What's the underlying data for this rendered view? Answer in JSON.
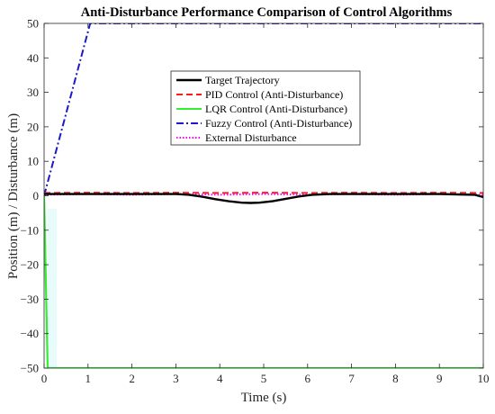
{
  "chart_data": {
    "type": "line",
    "title": "Anti-Disturbance Performance Comparison of Control Algorithms",
    "xlabel": "Time (s)",
    "ylabel": "Position (m) / Disturbance (m)",
    "xlim": [
      0,
      10
    ],
    "ylim": [
      -50,
      50
    ],
    "xticks": [
      0,
      1,
      2,
      3,
      4,
      5,
      6,
      7,
      8,
      9,
      10
    ],
    "yticks": [
      -50,
      -40,
      -30,
      -20,
      -10,
      0,
      10,
      20,
      30,
      40,
      50
    ],
    "grid": false,
    "legend_position": "top-center",
    "series": [
      {
        "name": "Target Trajectory",
        "color": "#000000",
        "style": "solid",
        "x": [
          0,
          1,
          2,
          3,
          3.3,
          3.6,
          3.9,
          4.2,
          4.5,
          4.7,
          4.9,
          5.2,
          5.5,
          5.8,
          6.1,
          6.5,
          7,
          8,
          9,
          9.8,
          10
        ],
        "y": [
          0.5,
          0.5,
          0.5,
          0.5,
          0.3,
          -0.3,
          -1.0,
          -1.6,
          -2.0,
          -2.1,
          -2.0,
          -1.6,
          -0.9,
          -0.2,
          0.3,
          0.5,
          0.5,
          0.5,
          0.5,
          0.3,
          -0.4
        ]
      },
      {
        "name": "PID Control (Anti-Disturbance)",
        "color": "#ff1a1a",
        "style": "dashed",
        "x": [
          0,
          1,
          2,
          3,
          4,
          5,
          6,
          7,
          8,
          9,
          10
        ],
        "y": [
          0.8,
          0.9,
          0.8,
          0.9,
          0.8,
          0.9,
          0.8,
          0.9,
          0.8,
          0.9,
          0.8
        ]
      },
      {
        "name": "LQR Control (Anti-Disturbance)",
        "color": "#33ee33",
        "style": "solid",
        "x": [
          0,
          0.08,
          0.1,
          1,
          2,
          3,
          4,
          5,
          6,
          7,
          8,
          9,
          10
        ],
        "y": [
          0,
          -49.5,
          -50,
          -50,
          -50,
          -50,
          -50,
          -50,
          -50,
          -50,
          -50,
          -50,
          -50
        ]
      },
      {
        "name": "Fuzzy Control (Anti-Disturbance)",
        "color": "#1a1ac8",
        "style": "dashdot",
        "x": [
          0,
          1.05,
          2,
          3,
          4,
          5,
          6,
          7,
          8,
          9,
          10
        ],
        "y": [
          0,
          50,
          50,
          50,
          50,
          50,
          50,
          50,
          50,
          50,
          50
        ]
      },
      {
        "name": "External Disturbance",
        "color": "#ff00ff",
        "style": "dotted",
        "x": [
          0,
          1,
          2,
          3,
          4,
          5,
          6,
          7,
          8,
          9,
          10
        ],
        "y": [
          0.3,
          0.5,
          0.3,
          0.5,
          0.3,
          0.5,
          0.3,
          0.5,
          0.3,
          0.5,
          0.3
        ]
      }
    ]
  }
}
